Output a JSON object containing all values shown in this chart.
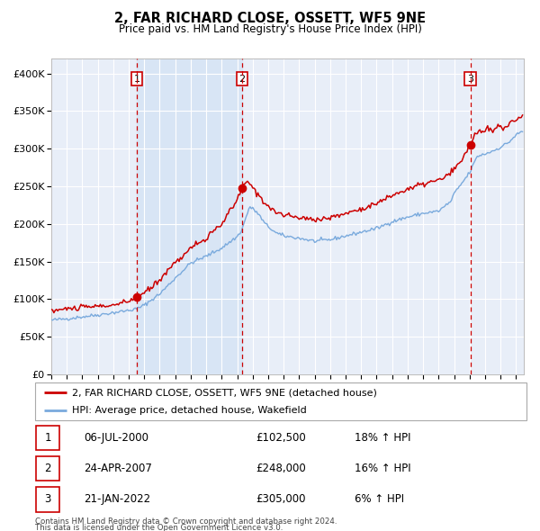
{
  "title": "2, FAR RICHARD CLOSE, OSSETT, WF5 9NE",
  "subtitle": "Price paid vs. HM Land Registry's House Price Index (HPI)",
  "ylim": [
    0,
    420000
  ],
  "yticks": [
    0,
    50000,
    100000,
    150000,
    200000,
    250000,
    300000,
    350000,
    400000
  ],
  "ytick_labels": [
    "£0",
    "£50K",
    "£100K",
    "£150K",
    "£200K",
    "£250K",
    "£300K",
    "£350K",
    "£400K"
  ],
  "background_color": "#ffffff",
  "plot_bg_color": "#e8eef8",
  "grid_color": "#ffffff",
  "red_line_color": "#cc0000",
  "blue_line_color": "#7aaadd",
  "dashed_line_color": "#cc0000",
  "sale1_date": 2000.52,
  "sale1_price": 102500,
  "sale1_label": "1",
  "sale2_date": 2007.31,
  "sale2_price": 248000,
  "sale2_label": "2",
  "sale3_date": 2022.05,
  "sale3_price": 305000,
  "sale3_label": "3",
  "legend_line1": "2, FAR RICHARD CLOSE, OSSETT, WF5 9NE (detached house)",
  "legend_line2": "HPI: Average price, detached house, Wakefield",
  "table_rows": [
    [
      "1",
      "06-JUL-2000",
      "£102,500",
      "18% ↑ HPI"
    ],
    [
      "2",
      "24-APR-2007",
      "£248,000",
      "16% ↑ HPI"
    ],
    [
      "3",
      "21-JAN-2022",
      "£305,000",
      "6% ↑ HPI"
    ]
  ],
  "footnote1": "Contains HM Land Registry data © Crown copyright and database right 2024.",
  "footnote2": "This data is licensed under the Open Government Licence v3.0.",
  "xmin": 1995,
  "xmax": 2025.5
}
